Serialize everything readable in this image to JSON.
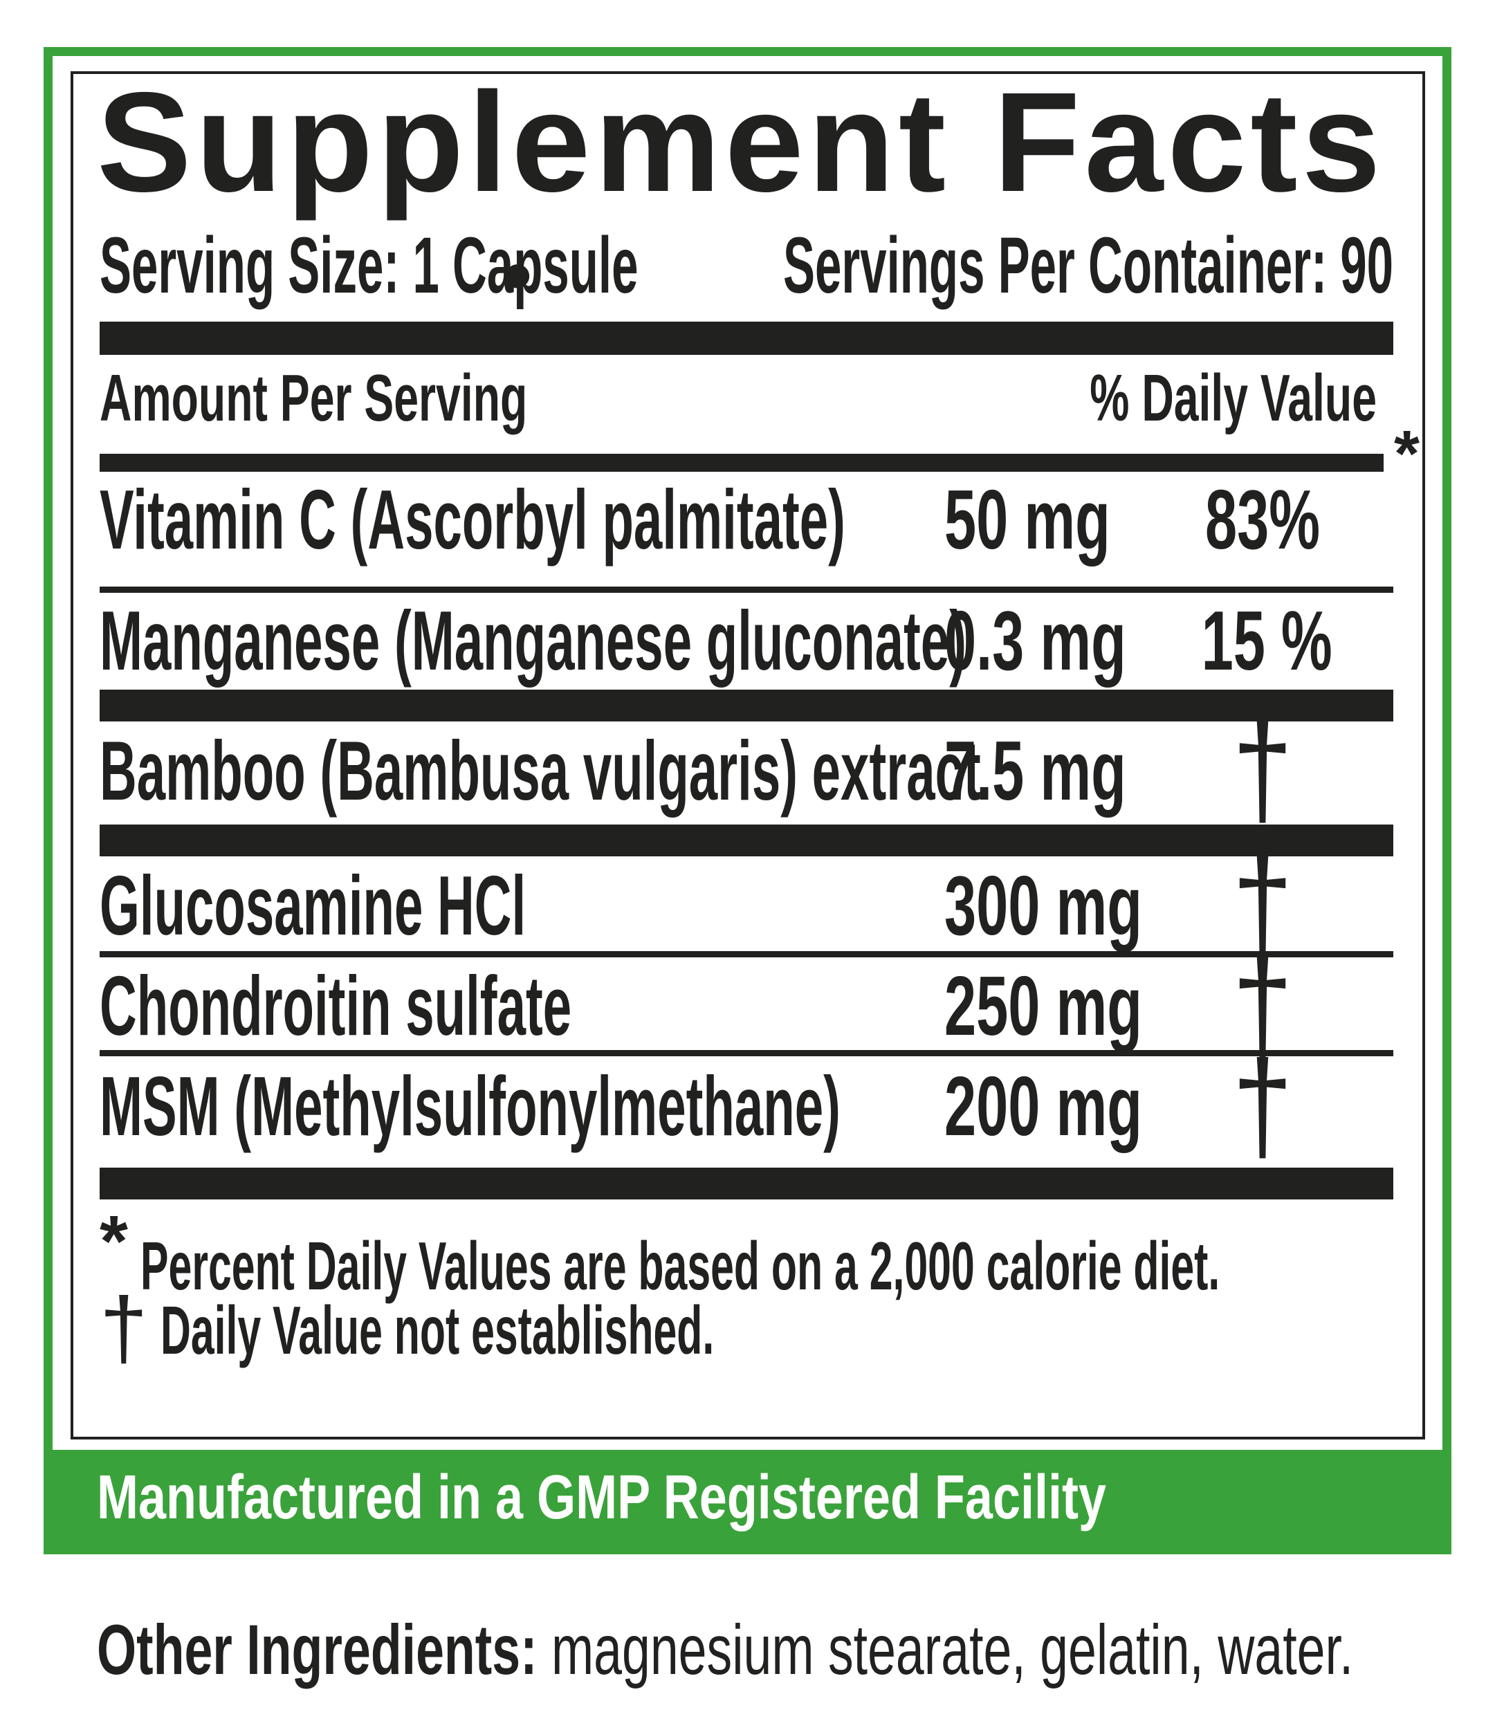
{
  "title": "Supplement Facts",
  "serving": {
    "size": "Serving Size: 1 Capsule",
    "bullet": "•",
    "per_container": "Servings Per Container: 90"
  },
  "table": {
    "amount_header": "Amount Per Serving",
    "dv_header": "% Daily Value",
    "dv_header_note": "*",
    "rows": [
      {
        "name": "Vitamin C (Ascorbyl palmitate)",
        "amount": "50 mg",
        "dv": "83%"
      },
      {
        "name": "Manganese (Manganese gluconate)",
        "amount": "0.3 mg",
        "dv": "15 %"
      },
      {
        "name": "Bamboo (Bambusa vulgaris) extract",
        "amount": "7.5 mg",
        "dv": "†"
      },
      {
        "name": "Glucosamine HCl",
        "amount": "300 mg",
        "dv": "†"
      },
      {
        "name": "Chondroitin sulfate",
        "amount": "250 mg",
        "dv": "†"
      },
      {
        "name": "MSM (Methylsulfonylmethane)",
        "amount": "200 mg",
        "dv": "†"
      }
    ]
  },
  "footnotes": [
    {
      "symbol": "*",
      "text": "Percent Daily Values are based on a 2,000 calorie diet."
    },
    {
      "symbol": "†",
      "text": "Daily Value not established."
    }
  ],
  "banner": {
    "text": "Manufactured in a GMP Registered Facility"
  },
  "other_ingredients": {
    "label": "Other Ingredients:",
    "text": " magnesium stearate, gelatin, water."
  },
  "colors": {
    "green": "#3aa23a",
    "ink": "#212120"
  }
}
